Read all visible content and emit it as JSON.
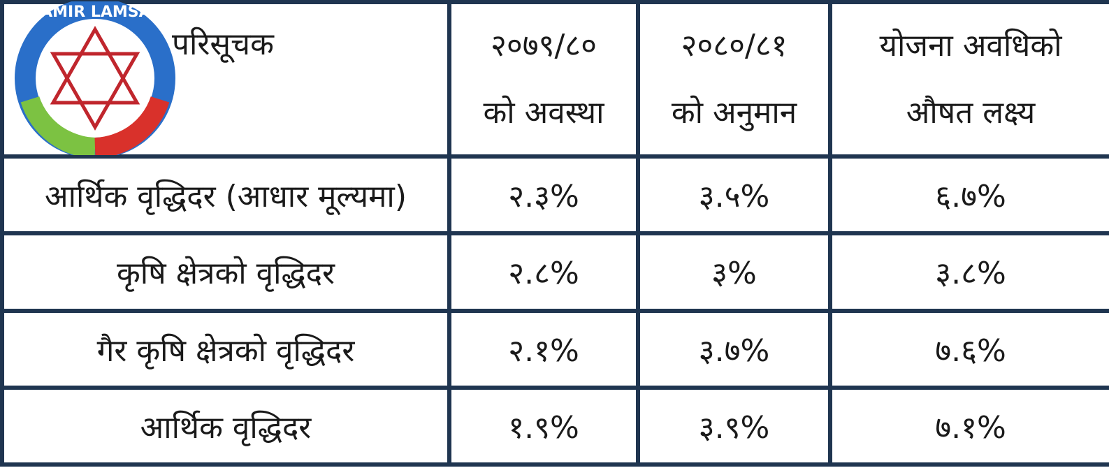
{
  "logo": {
    "text": "SAMIR LAMSAL"
  },
  "table": {
    "header": [
      [
        "परिसूचक"
      ],
      [
        "२०७९/८०",
        "को अवस्था"
      ],
      [
        "२०८०/८१",
        "को अनुमान"
      ],
      [
        "योजना अवधिको",
        "औषत लक्ष्य"
      ]
    ],
    "rows": [
      [
        "आर्थिक वृद्धिदर (आधार मूल्यमा)",
        "२.३%",
        "३.५%",
        "६.७%"
      ],
      [
        "कृषि क्षेत्रको वृद्धिदर",
        "२.८%",
        "३%",
        "३.८%"
      ],
      [
        "गैर कृषि क्षेत्रको वृद्धिदर",
        "२.१%",
        "३.७%",
        "७.६%"
      ],
      [
        "आर्थिक वृद्धिदर",
        "१.९%",
        "३.९%",
        "७.१%"
      ]
    ]
  }
}
